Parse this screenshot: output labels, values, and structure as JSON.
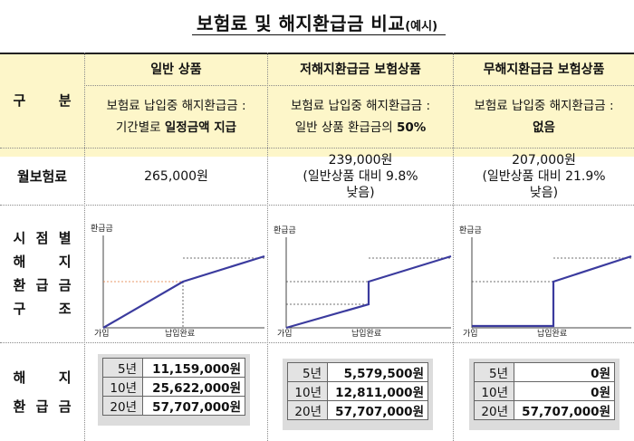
{
  "title": {
    "main": "보험료 및 해지환급금 비교",
    "sub": "(예시)"
  },
  "row_labels": {
    "category": [
      "구",
      "분"
    ],
    "premium": "월보험료",
    "structure": [
      [
        "시",
        "점",
        "별"
      ],
      [
        "해",
        "",
        "지"
      ],
      [
        "환",
        "급",
        "금"
      ],
      [
        "구",
        "",
        "조"
      ]
    ],
    "refund": [
      [
        "해",
        "",
        "지"
      ],
      [
        "환",
        "급",
        "금"
      ]
    ]
  },
  "columns": [
    {
      "header": "일반 상품",
      "desc_line1": "보험료 납입중 해지환급금 :",
      "desc_line2_plain": "기간별로 ",
      "desc_line2_bold": "일정금액 지급",
      "premium_lines": [
        "265,000원"
      ],
      "chart": {
        "y_label": "환급금",
        "x_start": "가입",
        "x_end": "납입완료"
      },
      "refund_rows": [
        {
          "period": "5년",
          "amount": "11,159,000원"
        },
        {
          "period": "10년",
          "amount": "25,622,000원"
        },
        {
          "period": "20년",
          "amount": "57,707,000원"
        }
      ]
    },
    {
      "header": "저해지환급금 보험상품",
      "desc_line1": "보험료 납입중 해지환급금 :",
      "desc_line2_plain": "일반 상품 환급금의 ",
      "desc_line2_bold": "50%",
      "premium_lines": [
        "239,000원",
        "(일반상품 대비 9.8%",
        "낮음)"
      ],
      "chart": {
        "y_label": "환급금",
        "x_start": "가입",
        "x_end": "납입완료"
      },
      "refund_rows": [
        {
          "period": "5년",
          "amount": "5,579,500원"
        },
        {
          "period": "10년",
          "amount": "12,811,000원"
        },
        {
          "period": "20년",
          "amount": "57,707,000원"
        }
      ]
    },
    {
      "header": "무해지환급금 보험상품",
      "desc_line1": "보험료 납입중 해지환급금 :",
      "desc_line2_plain": "",
      "desc_line2_bold": "없음",
      "premium_lines": [
        "207,000원",
        "(일반상품 대비 21.9%",
        "낮음)"
      ],
      "chart": {
        "y_label": "환급금",
        "x_start": "가입",
        "x_end": "납입완료"
      },
      "refund_rows": [
        {
          "period": "5년",
          "amount": "0원"
        },
        {
          "period": "10년",
          "amount": "0원"
        },
        {
          "period": "20년",
          "amount": "57,707,000원"
        }
      ]
    }
  ],
  "colors": {
    "header_bg": "#fdf6c9",
    "line": "#3b3b9e",
    "period_bg": "#e3e3e3"
  }
}
